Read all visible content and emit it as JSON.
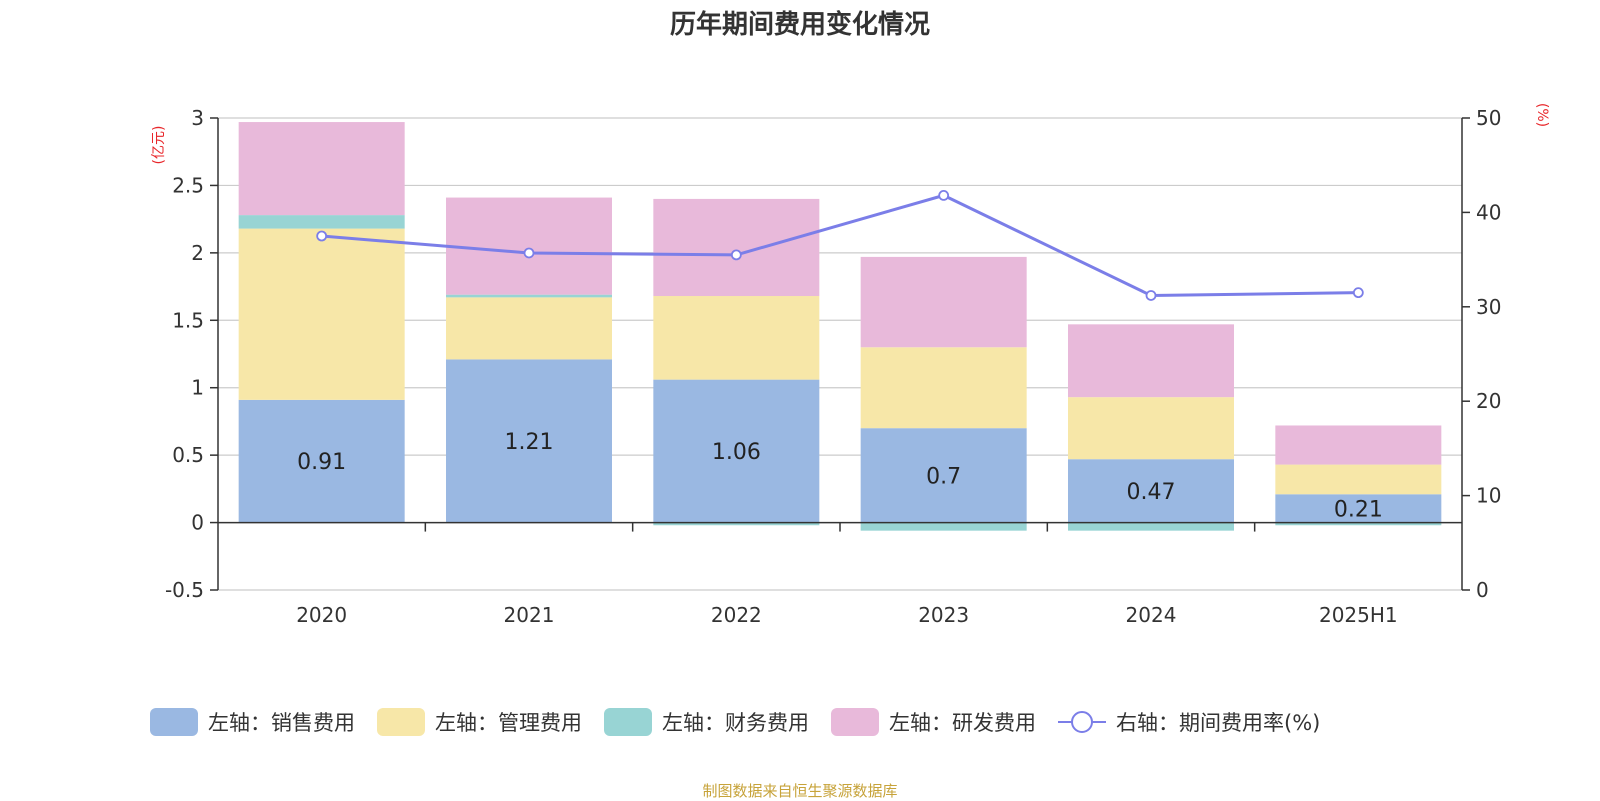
{
  "colors": {
    "sales": "#9ab8e2",
    "admin": "#f7e7a8",
    "finance": "#98d4d4",
    "rnd": "#e8b9da",
    "rate": "#7b7ee8",
    "unit": "#e8262a",
    "source": "#c7a33a"
  },
  "source_note": "制图数据来自恒生聚源数据库",
  "chart_data": {
    "type": "bar",
    "title": "历年期间费用变化情况",
    "stacked": true,
    "categories": [
      "2020",
      "2021",
      "2022",
      "2023",
      "2024",
      "2025H1"
    ],
    "y_left": {
      "unit": "(亿元)",
      "range": [
        -0.5,
        3
      ],
      "ticks": [
        "3",
        "2.5",
        "2",
        "1.5",
        "1",
        "0.5",
        "0",
        "-0.5"
      ]
    },
    "y_right": {
      "unit": "(%)",
      "range": [
        0,
        50
      ],
      "ticks": [
        "50",
        "40",
        "30",
        "20",
        "10",
        "0"
      ]
    },
    "series": [
      {
        "name": "左轴：销售费用",
        "axis": "left",
        "type": "bar",
        "color_key": "sales",
        "values": [
          0.91,
          1.21,
          1.06,
          0.7,
          0.47,
          0.21
        ],
        "labels": [
          "0.91",
          "1.21",
          "1.06",
          "0.7",
          "0.47",
          "0.21"
        ]
      },
      {
        "name": "左轴：管理费用",
        "axis": "left",
        "type": "bar",
        "color_key": "admin",
        "values": [
          1.27,
          0.46,
          0.62,
          0.6,
          0.46,
          0.22
        ]
      },
      {
        "name": "左轴：财务费用",
        "axis": "left",
        "type": "bar",
        "color_key": "finance",
        "values": [
          0.1,
          0.02,
          -0.02,
          -0.06,
          -0.06,
          -0.02
        ]
      },
      {
        "name": "左轴：研发费用",
        "axis": "left",
        "type": "bar",
        "color_key": "rnd",
        "values": [
          0.69,
          0.72,
          0.72,
          0.67,
          0.54,
          0.29
        ]
      },
      {
        "name": "右轴：期间费用率(%)",
        "axis": "right",
        "type": "line",
        "color_key": "rate",
        "values": [
          37.5,
          35.7,
          35.5,
          41.8,
          31.2,
          31.5
        ]
      }
    ],
    "legend_position": "bottom",
    "grid": true
  }
}
